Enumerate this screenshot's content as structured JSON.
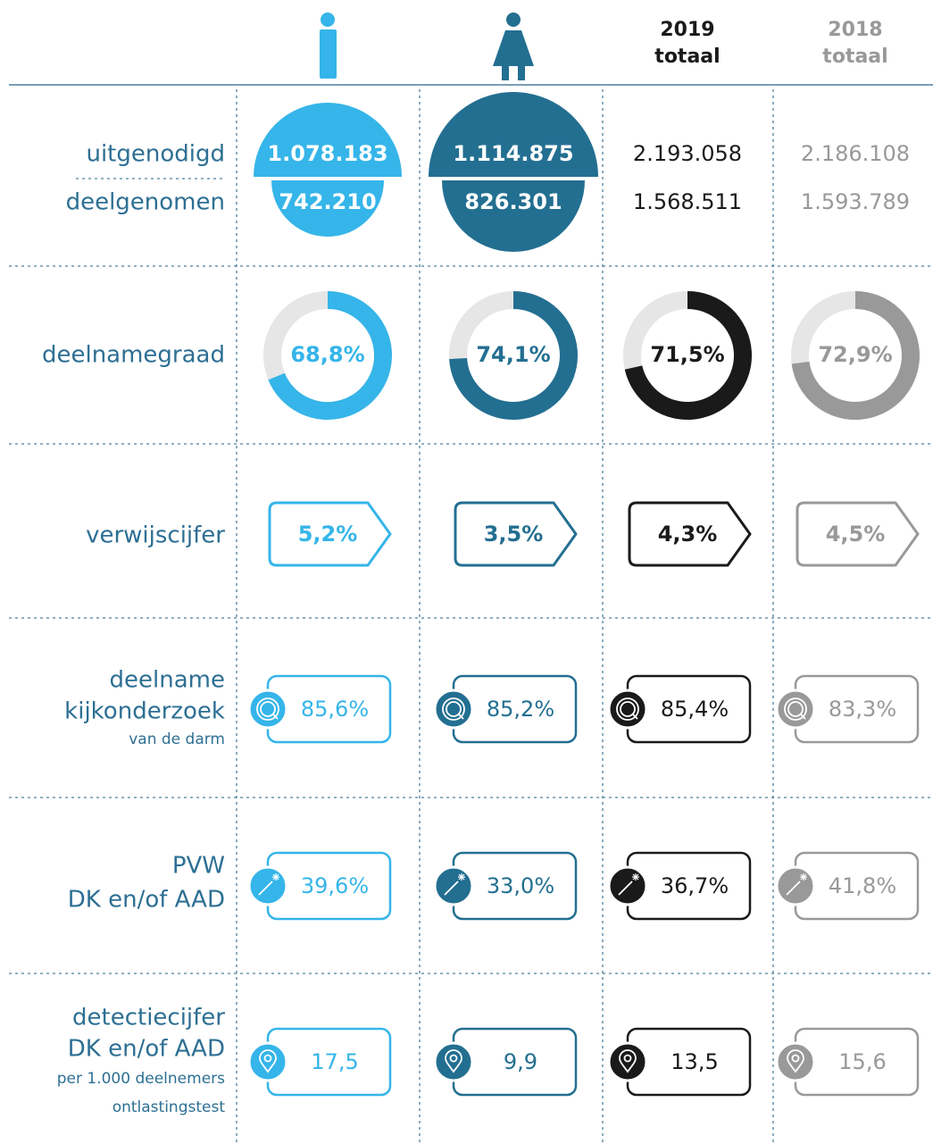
{
  "header": {
    "columns": [
      {
        "year": "2019",
        "label": "totaal"
      },
      {
        "year": "2018",
        "label": "totaal"
      }
    ]
  },
  "rows": [
    {
      "labels": [
        "uitgenodigd"
      ],
      "values": [
        "1.078.183",
        "1.114.875",
        "2.193.058",
        "2.186.108"
      ]
    },
    {
      "labels": [
        "deelgenomen"
      ],
      "values": [
        "742.210",
        "826.301",
        "1.568.511",
        "1.593.789"
      ]
    },
    {
      "labels": [
        "deelnamegraad"
      ],
      "values": [
        {
          "value": 68.8,
          "label": "68,8%"
        },
        {
          "value": 74.1,
          "label": "74,1%"
        },
        {
          "value": 71.5,
          "label": "71,5%"
        },
        {
          "value": 72.9,
          "label": "72,9%"
        }
      ]
    },
    {
      "labels": [
        "verwijscijfer"
      ],
      "values": [
        "5,2%",
        "3,5%",
        "4,3%",
        "4,5%"
      ]
    },
    {
      "labels": [
        "deelname",
        "kijkonderzoek"
      ],
      "note": [
        "van de darm"
      ],
      "values": [
        "85,6%",
        "85,2%",
        "85,4%",
        "83,3%"
      ]
    },
    {
      "labels": [
        "PVW",
        "DK en/of AAD"
      ],
      "values": [
        "39,6%",
        "33,0%",
        "36,7%",
        "41,8%"
      ]
    },
    {
      "labels": [
        "detectiecijfer",
        "DK en/of AAD"
      ],
      "note": [
        "per 1.000 deelnemers",
        "ontlastingstest"
      ],
      "values": [
        "17,5",
        "9,9",
        "13,5",
        "15,6"
      ]
    }
  ]
}
